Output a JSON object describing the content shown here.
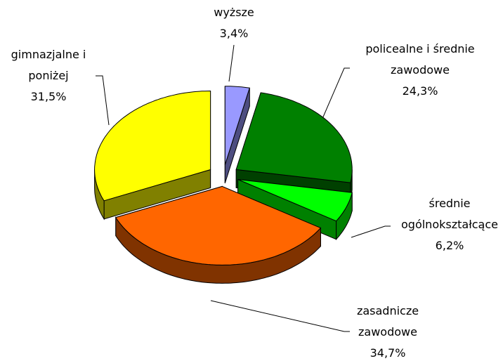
{
  "chart_data": {
    "type": "pie3d",
    "categories": [
      "wyższe",
      "policealne i średnie zawodowe",
      "średnie ogólnokształcące",
      "zasadnicze zawodowe",
      "gimnazjalne i poniżej"
    ],
    "values": [
      3.4,
      24.3,
      6.2,
      34.7,
      31.5
    ],
    "value_labels": [
      "3,4%",
      "24,3%",
      "6,2%",
      "34,7%",
      "31,5%"
    ],
    "colors": [
      "#9999ff",
      "#008000",
      "#00ff00",
      "#ff6600",
      "#ffff00"
    ]
  }
}
